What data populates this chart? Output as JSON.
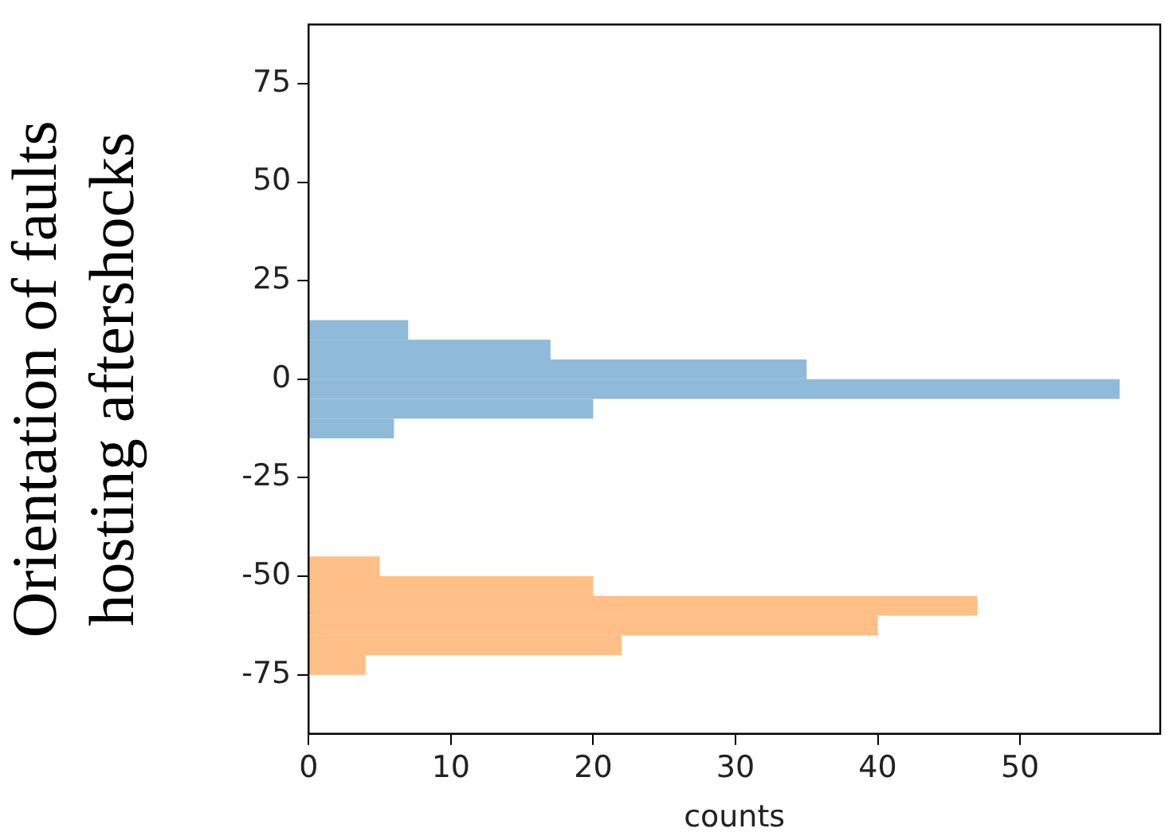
{
  "chart_data": {
    "type": "histogram",
    "orientation": "horizontal",
    "xlabel": "counts",
    "ylabel": "Orientation of faults\nhosting aftershocks",
    "bins": [
      -75,
      -70,
      -65,
      -60,
      -55,
      -50,
      -45,
      -40,
      -35,
      -30,
      -25,
      -20,
      -15,
      -10,
      -5,
      0,
      5,
      10,
      15
    ],
    "series": [
      {
        "color": "#8fbad9",
        "values": [
          null,
          null,
          null,
          null,
          null,
          null,
          null,
          null,
          null,
          null,
          null,
          null,
          6,
          20,
          57,
          35,
          17,
          7
        ]
      },
      {
        "color": "#ffbf86",
        "values": [
          4,
          22,
          40,
          47,
          20,
          5,
          null,
          null,
          null,
          null,
          null,
          null,
          null,
          null,
          null,
          null,
          null,
          null
        ]
      }
    ],
    "xlim": [
      0,
      59.85
    ],
    "xticks": [
      0,
      10,
      20,
      30,
      40,
      50
    ],
    "ylim": [
      -90,
      90
    ],
    "yticks": [
      -75,
      -50,
      -25,
      0,
      25,
      50,
      75
    ],
    "grid": false,
    "legend": false
  }
}
